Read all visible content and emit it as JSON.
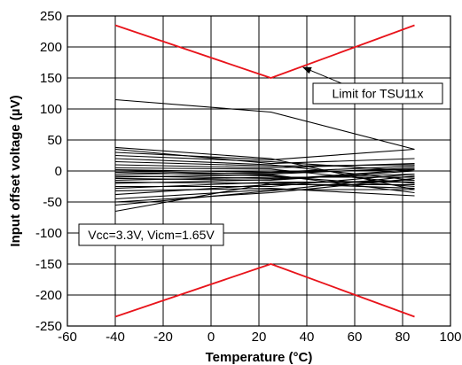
{
  "chart_data": {
    "type": "line",
    "title": "",
    "xlabel": "Temperature (°C)",
    "ylabel": "Input offset voltage (µV)",
    "xlim": [
      -60,
      100
    ],
    "ylim": [
      -250,
      250
    ],
    "x_ticks": [
      -60,
      -40,
      -20,
      0,
      20,
      40,
      60,
      80,
      100
    ],
    "y_ticks": [
      -250,
      -200,
      -150,
      -100,
      -50,
      0,
      50,
      100,
      150,
      200,
      250
    ],
    "grid": true,
    "legend": "none",
    "x": [
      -40,
      25,
      85
    ],
    "limit_series": [
      {
        "name": "Limit for TSU11x",
        "color": "#e8141b",
        "x": [
          -40,
          25,
          85
        ],
        "values": [
          235,
          150,
          235
        ]
      },
      {
        "name": "Limit for TSU11x",
        "color": "#e8141b",
        "x": [
          -40,
          25,
          85
        ],
        "values": [
          -235,
          -150,
          -235
        ]
      }
    ],
    "series": [
      {
        "color": "#000000",
        "values": [
          115,
          95,
          35
        ]
      },
      {
        "color": "#000000",
        "values": [
          38,
          20,
          -30
        ]
      },
      {
        "color": "#000000",
        "values": [
          35,
          12,
          20
        ]
      },
      {
        "color": "#000000",
        "values": [
          30,
          18,
          35
        ]
      },
      {
        "color": "#000000",
        "values": [
          25,
          15,
          0
        ]
      },
      {
        "color": "#000000",
        "values": [
          20,
          10,
          -15
        ]
      },
      {
        "color": "#000000",
        "values": [
          15,
          8,
          10
        ]
      },
      {
        "color": "#000000",
        "values": [
          10,
          5,
          12
        ]
      },
      {
        "color": "#000000",
        "values": [
          5,
          3,
          -20
        ]
      },
      {
        "color": "#000000",
        "values": [
          2,
          -2,
          8
        ]
      },
      {
        "color": "#000000",
        "values": [
          0,
          -5,
          5
        ]
      },
      {
        "color": "#000000",
        "values": [
          -2,
          -8,
          -25
        ]
      },
      {
        "color": "#000000",
        "values": [
          -5,
          -3,
          3
        ]
      },
      {
        "color": "#000000",
        "values": [
          -8,
          -12,
          -5
        ]
      },
      {
        "color": "#000000",
        "values": [
          -10,
          -6,
          -35
        ]
      },
      {
        "color": "#000000",
        "values": [
          -12,
          -15,
          0
        ]
      },
      {
        "color": "#000000",
        "values": [
          -15,
          -10,
          -10
        ]
      },
      {
        "color": "#000000",
        "values": [
          -18,
          -20,
          -28
        ]
      },
      {
        "color": "#000000",
        "values": [
          -20,
          -14,
          2
        ]
      },
      {
        "color": "#000000",
        "values": [
          -25,
          -25,
          -5
        ]
      },
      {
        "color": "#000000",
        "values": [
          -28,
          -18,
          -18
        ]
      },
      {
        "color": "#000000",
        "values": [
          -32,
          -28,
          -40
        ]
      },
      {
        "color": "#000000",
        "values": [
          -38,
          -22,
          -22
        ]
      },
      {
        "color": "#000000",
        "values": [
          -45,
          -30,
          -30
        ]
      },
      {
        "color": "#000000",
        "values": [
          -50,
          -35,
          -12
        ]
      },
      {
        "color": "#000000",
        "values": [
          -55,
          -32,
          -8
        ]
      },
      {
        "color": "#000000",
        "values": [
          -65,
          -20,
          -15
        ]
      }
    ],
    "annotations": [
      {
        "text": "Limit for TSU11x",
        "arrow_to": [
          25,
          150
        ],
        "kind": "arrow-callout"
      },
      {
        "text": "Vcc=3.3V, Vicm=1.65V",
        "kind": "boxed-note"
      }
    ]
  }
}
